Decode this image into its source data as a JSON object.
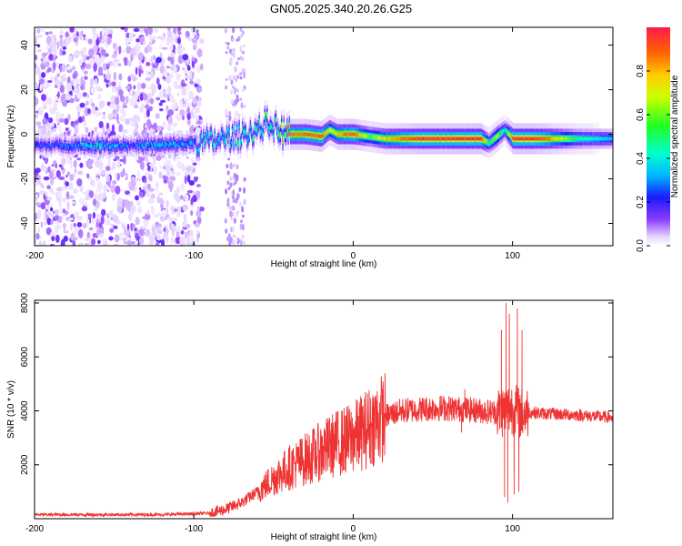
{
  "title": "GN05.2025.340.20.26.G25",
  "chart_data": [
    {
      "type": "heatmap",
      "xlabel": "Height of straight line (km)",
      "ylabel": "Frequency (Hz)",
      "xlim": [
        -200,
        163
      ],
      "ylim": [
        -50,
        48
      ],
      "xticks": [
        -200,
        -100,
        0,
        100
      ],
      "yticks": [
        -40,
        -20,
        0,
        20,
        40
      ],
      "xtick_labels": [
        "-200",
        "-100",
        "0",
        "100"
      ],
      "ytick_labels": [
        "-40",
        "-20",
        "0",
        "20",
        "40"
      ],
      "colorbar": {
        "label": "Normalized spectral amplitude",
        "range": [
          0,
          1
        ],
        "ticks": [
          0.0,
          0.2,
          0.4,
          0.6,
          0.8
        ],
        "tick_labels": [
          "0.0",
          "0.2",
          "0.4",
          "0.6",
          "0.8"
        ]
      },
      "ridge": {
        "x": [
          -200,
          -180,
          -160,
          -140,
          -120,
          -100,
          -90,
          -80,
          -70,
          -60,
          -55,
          -50,
          -45,
          -40,
          -30,
          -20,
          -15,
          -10,
          -5,
          0,
          10,
          20,
          40,
          60,
          80,
          85,
          90,
          95,
          100,
          110,
          120,
          140,
          163
        ],
        "y": [
          -5,
          -5,
          -5,
          -5,
          -5,
          -4,
          -3,
          -2,
          0,
          2,
          5,
          3,
          1,
          0,
          0,
          -1,
          2,
          0,
          0,
          0,
          -1,
          -2,
          -2,
          -2,
          -2,
          -4,
          -1,
          2,
          -2,
          -2,
          -2,
          -2,
          -2
        ],
        "amplitude": [
          0.25,
          0.3,
          0.45,
          0.3,
          0.4,
          0.35,
          0.5,
          0.45,
          0.5,
          0.55,
          0.6,
          0.55,
          0.8,
          0.9,
          0.9,
          0.95,
          0.7,
          0.8,
          0.9,
          0.95,
          0.6,
          0.8,
          1.0,
          1.0,
          1.0,
          0.5,
          0.7,
          0.4,
          1.0,
          1.0,
          0.95,
          0.5,
          0.35
        ]
      }
    },
    {
      "type": "line",
      "xlabel": "Height of straight line (km)",
      "ylabel": "SNR (10 * v/v)",
      "xlim": [
        -200,
        163
      ],
      "ylim": [
        0,
        8100
      ],
      "xticks": [
        -200,
        -100,
        0,
        100
      ],
      "yticks": [
        2000,
        4000,
        6000,
        8000
      ],
      "xtick_labels": [
        "-200",
        "-100",
        "0",
        "100"
      ],
      "ytick_labels": [
        "2000",
        "4000",
        "6000",
        "8000"
      ],
      "color": "#ee3333",
      "envelope": {
        "x": [
          -200,
          -120,
          -90,
          -80,
          -70,
          -60,
          -50,
          -40,
          -30,
          -20,
          -10,
          0,
          10,
          20,
          30,
          40,
          50,
          60,
          70,
          80,
          90,
          95,
          100,
          105,
          110,
          120,
          140,
          163
        ],
        "y": [
          150,
          150,
          200,
          350,
          600,
          1000,
          1500,
          1900,
          2200,
          2500,
          2800,
          3000,
          3400,
          3800,
          4000,
          4050,
          4100,
          4100,
          4050,
          4000,
          3950,
          4000,
          4100,
          3900,
          3950,
          3900,
          3850,
          3750
        ]
      },
      "spikes": [
        {
          "x": 93,
          "y": 7000
        },
        {
          "x": 95,
          "y": 800
        },
        {
          "x": 96,
          "y": 8000
        },
        {
          "x": 97,
          "y": 600
        },
        {
          "x": 98,
          "y": 7600
        },
        {
          "x": 101,
          "y": 900
        },
        {
          "x": 103,
          "y": 7800
        },
        {
          "x": 104,
          "y": 1000
        },
        {
          "x": 106,
          "y": 7000
        },
        {
          "x": 70,
          "y": 4800
        },
        {
          "x": 68,
          "y": 3200
        }
      ]
    }
  ]
}
